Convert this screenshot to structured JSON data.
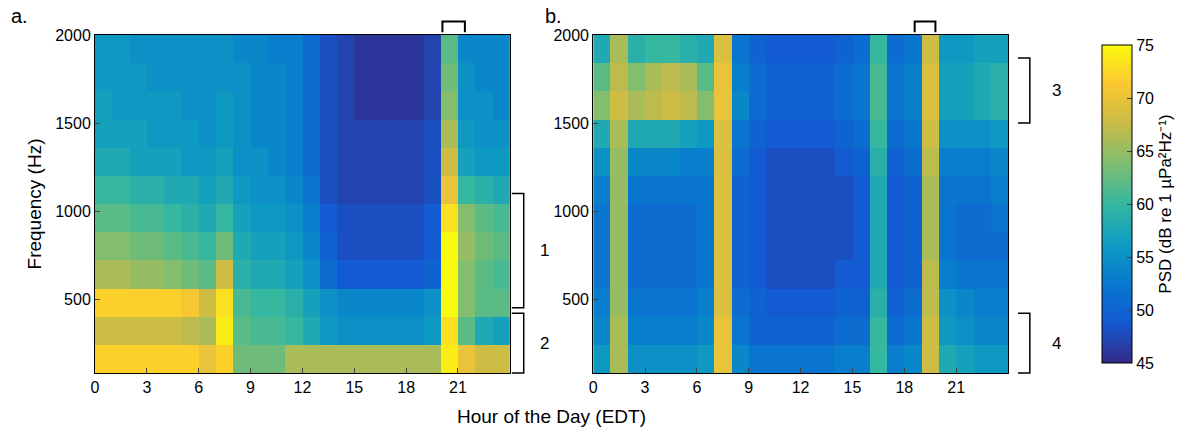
{
  "chart_data": {
    "type": "heatmap",
    "xlabel": "Hour of the Day (EDT)",
    "ylabel": "Frequency (Hz)",
    "colorbar": {
      "title": "PSD (dB re 1 µPa²Hz⁻¹)",
      "range": [
        45,
        75
      ],
      "ticks": [
        45,
        50,
        55,
        60,
        65,
        70,
        75
      ]
    },
    "panels": [
      {
        "label": "a.",
        "xlim": [
          0,
          24
        ],
        "ylim": [
          80,
          2000
        ],
        "xticks": [
          0,
          3,
          6,
          9,
          12,
          15,
          18,
          21
        ],
        "yticks": [
          500,
          1000,
          1500,
          2000
        ],
        "x": [
          0.5,
          1.5,
          2.5,
          3.5,
          4.5,
          5.5,
          6.5,
          7.5,
          8.5,
          9.5,
          10.5,
          11.5,
          12.5,
          13.5,
          14.5,
          15.5,
          16.5,
          17.5,
          18.5,
          19.5,
          20.5,
          21.5,
          22.5,
          23.5
        ],
        "y": [
          160,
          320,
          480,
          640,
          800,
          960,
          1120,
          1280,
          1440,
          1600,
          1760,
          1920
        ],
        "z": [
          [
            72,
            72,
            72,
            72,
            72,
            72,
            70,
            72,
            63,
            63,
            63,
            66,
            66,
            66,
            66,
            66,
            66,
            66,
            66,
            66,
            74,
            70,
            68,
            68
          ],
          [
            68,
            68,
            68,
            68,
            68,
            67,
            66,
            74,
            62,
            61,
            61,
            60,
            58,
            56,
            55,
            55,
            55,
            55,
            55,
            56,
            73,
            62,
            58,
            57
          ],
          [
            72,
            72,
            72,
            72,
            72,
            71,
            68,
            73,
            61,
            60,
            60,
            59,
            57,
            55,
            54,
            54,
            54,
            54,
            54,
            55,
            75,
            64,
            62,
            62
          ],
          [
            66,
            66,
            65,
            65,
            64,
            63,
            62,
            68,
            59,
            58,
            58,
            57,
            55,
            51,
            49,
            49,
            49,
            49,
            49,
            50,
            75,
            64,
            62,
            61
          ],
          [
            64,
            64,
            63,
            63,
            62,
            61,
            60,
            63,
            58,
            57,
            57,
            56,
            54,
            50,
            48,
            48,
            48,
            48,
            48,
            49,
            75,
            65,
            63,
            62
          ],
          [
            62,
            62,
            61,
            61,
            60,
            59,
            58,
            60,
            57,
            56,
            56,
            55,
            53,
            49,
            48,
            48,
            48,
            48,
            48,
            49,
            73,
            64,
            62,
            61
          ],
          [
            60,
            60,
            59,
            59,
            58,
            58,
            57,
            58,
            56,
            55,
            55,
            54,
            52,
            48,
            47,
            47,
            47,
            47,
            47,
            48,
            70,
            60,
            59,
            58
          ],
          [
            58,
            58,
            57,
            57,
            57,
            56,
            56,
            57,
            55,
            55,
            54,
            53,
            51,
            48,
            47,
            47,
            47,
            47,
            47,
            48,
            68,
            57,
            56,
            56
          ],
          [
            57,
            57,
            57,
            56,
            56,
            56,
            55,
            56,
            55,
            54,
            54,
            53,
            51,
            48,
            47,
            47,
            47,
            47,
            47,
            48,
            66,
            56,
            55,
            55
          ],
          [
            57,
            56,
            56,
            56,
            56,
            55,
            55,
            56,
            55,
            54,
            54,
            53,
            51,
            48,
            47,
            46,
            46,
            46,
            46,
            47,
            64,
            55,
            55,
            54
          ],
          [
            56,
            56,
            56,
            55,
            55,
            55,
            55,
            55,
            55,
            54,
            54,
            53,
            51,
            48,
            47,
            46,
            46,
            46,
            46,
            47,
            63,
            55,
            54,
            54
          ],
          [
            56,
            56,
            55,
            55,
            55,
            55,
            55,
            55,
            54,
            54,
            53,
            53,
            51,
            48,
            47,
            46,
            46,
            46,
            46,
            47,
            62,
            54,
            54,
            54
          ]
        ],
        "bracket_x": [
          20.1,
          21.4
        ],
        "annotations": [
          {
            "text": "1",
            "y": [
              450,
              1100
            ]
          },
          {
            "text": "2",
            "y": [
              80,
              420
            ]
          }
        ]
      },
      {
        "label": "b.",
        "xlim": [
          0,
          24
        ],
        "ylim": [
          80,
          2000
        ],
        "xticks": [
          0,
          3,
          6,
          9,
          12,
          15,
          18,
          21
        ],
        "yticks": [
          500,
          1000,
          1500,
          2000
        ],
        "x": [
          0.5,
          1.5,
          2.5,
          3.5,
          4.5,
          5.5,
          6.5,
          7.5,
          8.5,
          9.5,
          10.5,
          11.5,
          12.5,
          13.5,
          14.5,
          15.5,
          16.5,
          17.5,
          18.5,
          19.5,
          20.5,
          21.5,
          22.5,
          23.5
        ],
        "y": [
          160,
          320,
          480,
          640,
          800,
          960,
          1120,
          1280,
          1440,
          1600,
          1760,
          1920
        ],
        "z": [
          [
            56,
            66,
            55,
            55,
            55,
            55,
            56,
            70,
            54,
            52,
            52,
            52,
            52,
            52,
            53,
            53,
            60,
            53,
            54,
            68,
            58,
            57,
            56,
            56
          ],
          [
            54,
            66,
            53,
            53,
            53,
            53,
            54,
            70,
            52,
            50,
            50,
            50,
            50,
            50,
            51,
            51,
            60,
            51,
            52,
            68,
            56,
            55,
            54,
            54
          ],
          [
            53,
            65,
            52,
            52,
            52,
            52,
            53,
            69,
            51,
            50,
            49,
            49,
            49,
            49,
            50,
            50,
            59,
            50,
            51,
            67,
            55,
            54,
            53,
            53
          ],
          [
            52,
            65,
            51,
            51,
            51,
            51,
            52,
            69,
            50,
            49,
            48,
            48,
            48,
            48,
            49,
            49,
            58,
            49,
            50,
            67,
            53,
            52,
            52,
            52
          ],
          [
            52,
            65,
            51,
            51,
            51,
            51,
            52,
            69,
            50,
            49,
            48,
            48,
            48,
            48,
            48,
            49,
            58,
            49,
            50,
            66,
            52,
            51,
            51,
            51
          ],
          [
            52,
            65,
            51,
            51,
            51,
            51,
            52,
            69,
            50,
            49,
            48,
            48,
            48,
            48,
            48,
            49,
            58,
            49,
            50,
            66,
            52,
            51,
            51,
            52
          ],
          [
            53,
            65,
            52,
            52,
            52,
            52,
            52,
            69,
            50,
            49,
            48,
            48,
            48,
            48,
            48,
            49,
            58,
            49,
            50,
            66,
            52,
            52,
            52,
            53
          ],
          [
            55,
            65,
            54,
            54,
            54,
            53,
            53,
            69,
            51,
            49,
            48,
            48,
            48,
            48,
            49,
            50,
            59,
            50,
            51,
            67,
            53,
            53,
            53,
            54
          ],
          [
            58,
            66,
            58,
            58,
            58,
            57,
            56,
            69,
            52,
            50,
            49,
            49,
            49,
            49,
            50,
            51,
            60,
            51,
            52,
            68,
            55,
            55,
            55,
            56
          ],
          [
            64,
            68,
            66,
            67,
            68,
            67,
            64,
            70,
            54,
            51,
            50,
            50,
            50,
            50,
            51,
            52,
            61,
            52,
            53,
            69,
            57,
            57,
            58,
            59
          ],
          [
            62,
            67,
            64,
            66,
            67,
            66,
            62,
            70,
            53,
            51,
            50,
            50,
            50,
            50,
            51,
            52,
            61,
            52,
            53,
            69,
            57,
            57,
            58,
            59
          ],
          [
            58,
            66,
            59,
            60,
            60,
            59,
            58,
            69,
            52,
            50,
            49,
            49,
            49,
            49,
            50,
            51,
            60,
            51,
            52,
            68,
            56,
            56,
            57,
            57
          ]
        ],
        "bracket_x": [
          18.6,
          19.8
        ],
        "annotations": [
          {
            "text": "3",
            "y": [
              1500,
              1870
            ]
          },
          {
            "text": "4",
            "y": [
              80,
              420
            ]
          }
        ]
      }
    ]
  }
}
